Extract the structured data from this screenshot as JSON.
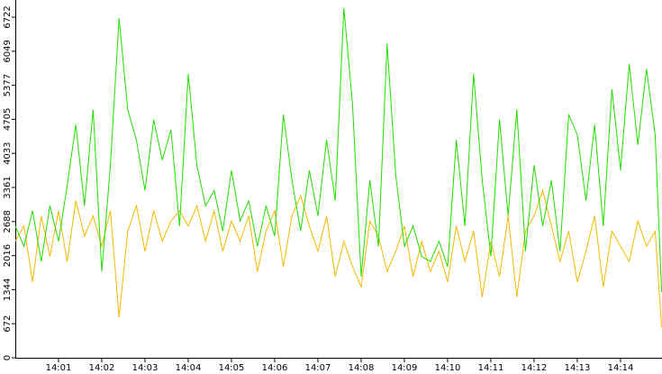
{
  "chart_data": {
    "type": "line",
    "x": [
      0,
      0.2,
      0.4,
      0.6,
      0.8,
      1,
      1.2,
      1.4,
      1.6,
      1.8,
      2,
      2.2,
      2.4,
      2.6,
      2.8,
      3,
      3.2,
      3.4,
      3.6,
      3.8,
      4,
      4.2,
      4.4,
      4.6,
      4.8,
      5,
      5.2,
      5.4,
      5.6,
      5.8,
      6,
      6.2,
      6.4,
      6.6,
      6.8,
      7,
      7.2,
      7.4,
      7.6,
      7.8,
      8,
      8.2,
      8.4,
      8.6,
      8.8,
      9,
      9.2,
      9.4,
      9.6,
      9.8,
      10,
      10.2,
      10.4,
      10.6,
      10.8,
      11,
      11.2,
      11.4,
      11.6,
      11.8,
      12,
      12.2,
      12.4,
      12.6,
      12.8,
      13,
      13.2,
      13.4,
      13.6,
      13.8,
      14,
      14.2,
      14.4,
      14.6,
      14.8,
      14.95
    ],
    "series": [
      {
        "color": "#22dd00",
        "values": [
          2600,
          2200,
          2900,
          1900,
          3000,
          2300,
          3400,
          4600,
          3000,
          4900,
          1700,
          3800,
          6700,
          4900,
          4300,
          3300,
          4700,
          3900,
          4500,
          2600,
          5600,
          3800,
          3000,
          3300,
          2500,
          3700,
          2700,
          3100,
          2200,
          3000,
          2400,
          4800,
          3500,
          2500,
          3700,
          2800,
          4300,
          3100,
          6900,
          5000,
          1600,
          3500,
          2200,
          6200,
          3600,
          2200,
          2600,
          2000,
          1900,
          2300,
          1800,
          4300,
          2600,
          5600,
          3500,
          2000,
          4700,
          2800,
          4900,
          2100,
          3800,
          2600,
          3500,
          2100,
          4800,
          4400,
          3100,
          4600,
          2600,
          5300,
          3700,
          5800,
          4200,
          5700,
          4400,
          1300
        ]
      },
      {
        "color": "#f5b800",
        "values": [
          2300,
          2600,
          1500,
          2800,
          2000,
          2900,
          1900,
          3100,
          2400,
          2800,
          2200,
          2900,
          800,
          2500,
          3000,
          2100,
          2900,
          2300,
          2700,
          2900,
          2600,
          3000,
          2300,
          2900,
          2100,
          2700,
          2300,
          2800,
          1700,
          2500,
          2900,
          1800,
          2800,
          3200,
          2600,
          2100,
          2800,
          1600,
          2300,
          1800,
          1400,
          2700,
          2400,
          1700,
          2100,
          2600,
          1600,
          2300,
          1700,
          2100,
          1500,
          2600,
          1900,
          2500,
          1200,
          2300,
          1600,
          2800,
          1200,
          2500,
          2800,
          3300,
          2600,
          1900,
          2500,
          1500,
          2100,
          2800,
          1400,
          2500,
          2200,
          1900,
          2700,
          2200,
          2500,
          600
        ]
      }
    ],
    "xlim": [
      0,
      15
    ],
    "xticks": [
      {
        "value": 1,
        "label": "14:01"
      },
      {
        "value": 2,
        "label": "14:02"
      },
      {
        "value": 3,
        "label": "14:03"
      },
      {
        "value": 4,
        "label": "14:04"
      },
      {
        "value": 5,
        "label": "14:05"
      },
      {
        "value": 6,
        "label": "14:06"
      },
      {
        "value": 7,
        "label": "14:07"
      },
      {
        "value": 8,
        "label": "14:08"
      },
      {
        "value": 9,
        "label": "14:09"
      },
      {
        "value": 10,
        "label": "14:10"
      },
      {
        "value": 11,
        "label": "14:11"
      },
      {
        "value": 12,
        "label": "14:12"
      },
      {
        "value": 13,
        "label": "14:13"
      },
      {
        "value": 14,
        "label": "14:14"
      }
    ],
    "ylim": [
      0,
      7060
    ],
    "yticks": [
      0,
      672,
      1344,
      2016,
      2688,
      3361,
      4033,
      4705,
      5377,
      6049,
      6722
    ]
  }
}
